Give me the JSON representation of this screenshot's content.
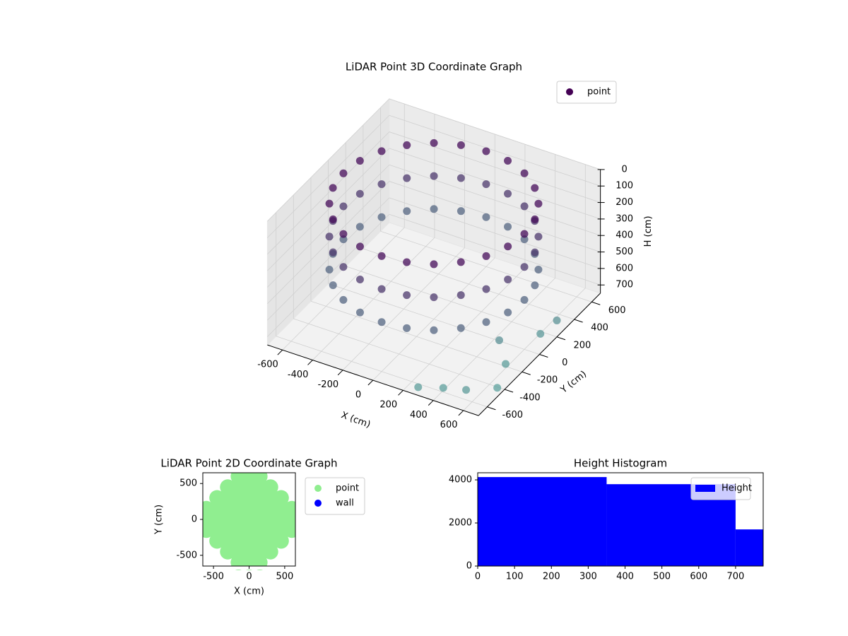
{
  "chart_data": [
    {
      "type": "scatter3d",
      "title": "LiDAR Point 3D Coordinate Graph",
      "xlabel": "X (cm)",
      "ylabel": "Y (cm)",
      "zlabel": "H (cm)",
      "xlim": [
        -700,
        700
      ],
      "ylim": [
        -700,
        700
      ],
      "zlim": [
        0,
        750
      ],
      "z_inverted": true,
      "xticks": [
        -600,
        -400,
        -200,
        0,
        200,
        400,
        600
      ],
      "yticks": [
        -600,
        -400,
        -200,
        0,
        200,
        400,
        600
      ],
      "zticks": [
        0,
        100,
        200,
        300,
        400,
        500,
        600,
        700
      ],
      "color_scale": [
        "#440154",
        "#5fa8a0"
      ],
      "legend": "upper right",
      "series": [
        {
          "name": "point",
          "color": "#440154",
          "x": [
            600,
            580,
            520,
            424,
            300,
            155,
            0,
            -155,
            -300,
            -424,
            -520,
            -580,
            -600,
            -580,
            -520,
            -424,
            -300,
            -155,
            0,
            155,
            300,
            424,
            520,
            580,
            600,
            580,
            520,
            424,
            300,
            155,
            0,
            -155,
            -300,
            -424,
            -520,
            -580,
            -600,
            -580,
            -520,
            -424,
            -300,
            -155,
            0,
            155,
            300,
            424,
            520,
            580,
            600,
            580,
            520,
            424,
            300,
            155,
            0,
            -155,
            -300,
            -424,
            -520,
            -580,
            -600,
            -580,
            -520,
            -424,
            -300,
            -155,
            0,
            155,
            300,
            424,
            520,
            580,
            620,
            680,
            560,
            420,
            300,
            660,
            700,
            520
          ],
          "y": [
            0,
            155,
            300,
            424,
            520,
            580,
            600,
            580,
            520,
            424,
            300,
            155,
            0,
            -155,
            -300,
            -424,
            -520,
            -580,
            -600,
            -580,
            -520,
            -424,
            -300,
            -155,
            0,
            155,
            300,
            424,
            520,
            580,
            600,
            580,
            520,
            424,
            300,
            155,
            0,
            -155,
            -300,
            -424,
            -520,
            -580,
            -600,
            -580,
            -520,
            -424,
            -300,
            -155,
            0,
            155,
            300,
            424,
            520,
            580,
            600,
            580,
            520,
            424,
            300,
            155,
            0,
            -155,
            -300,
            -424,
            -520,
            -580,
            -600,
            -580,
            -520,
            -424,
            -300,
            -155,
            -250,
            -450,
            -600,
            -620,
            -700,
            80,
            200,
            -150
          ],
          "z": [
            50,
            50,
            50,
            50,
            50,
            50,
            50,
            50,
            50,
            50,
            50,
            50,
            50,
            50,
            50,
            50,
            50,
            50,
            50,
            50,
            50,
            50,
            50,
            50,
            250,
            250,
            250,
            250,
            250,
            250,
            250,
            250,
            250,
            250,
            250,
            250,
            250,
            250,
            250,
            250,
            250,
            250,
            250,
            250,
            250,
            250,
            250,
            250,
            450,
            450,
            450,
            450,
            450,
            450,
            450,
            450,
            450,
            450,
            450,
            450,
            450,
            450,
            450,
            450,
            450,
            450,
            450,
            450,
            450,
            450,
            450,
            450,
            700,
            720,
            690,
            710,
            700,
            680,
            650,
            640
          ]
        }
      ]
    },
    {
      "type": "scatter",
      "title": "LiDAR Point 2D Coordinate Graph",
      "xlabel": "X (cm)",
      "ylabel": "Y (cm)",
      "xlim": [
        -650,
        650
      ],
      "ylim": [
        -650,
        650
      ],
      "xticks": [
        -500,
        0,
        500
      ],
      "yticks": [
        -500,
        0,
        500
      ],
      "legend": "outside right",
      "series": [
        {
          "name": "point",
          "color": "#90ee90",
          "x": [
            -150,
            0,
            150,
            -300,
            -150,
            0,
            150,
            300,
            -450,
            -300,
            -150,
            0,
            150,
            300,
            450,
            -600,
            -450,
            -300,
            -150,
            0,
            150,
            300,
            450,
            600,
            -600,
            -450,
            -300,
            -150,
            0,
            150,
            300,
            450,
            600,
            -600,
            -450,
            -300,
            -150,
            0,
            150,
            300,
            450,
            600,
            -450,
            -300,
            -150,
            0,
            150,
            300,
            450,
            -300,
            -150,
            0,
            150,
            300,
            -150,
            0,
            150
          ],
          "y": [
            -600,
            -600,
            -600,
            -450,
            -450,
            -450,
            -450,
            -450,
            -300,
            -300,
            -300,
            -300,
            -300,
            -300,
            -300,
            -150,
            -150,
            -150,
            -150,
            -150,
            -150,
            -150,
            -150,
            -150,
            0,
            0,
            0,
            0,
            0,
            0,
            0,
            0,
            0,
            150,
            150,
            150,
            150,
            150,
            150,
            150,
            150,
            150,
            300,
            300,
            300,
            300,
            300,
            300,
            300,
            450,
            450,
            450,
            450,
            450,
            600,
            600,
            600
          ]
        },
        {
          "name": "wall",
          "color": "#0000ff",
          "x": [],
          "y": []
        }
      ]
    },
    {
      "type": "histogram",
      "title": "Height Histogram",
      "bins": [
        0,
        350,
        700,
        780
      ],
      "xlim": [
        0,
        775
      ],
      "ylim": [
        0,
        4330
      ],
      "xticks": [
        0,
        100,
        200,
        300,
        400,
        500,
        600,
        700
      ],
      "yticks": [
        0,
        2000,
        4000
      ],
      "legend": "upper right",
      "series": [
        {
          "name": "Height",
          "color": "#0000ff",
          "values": [
            4130,
            3800,
            1700
          ]
        }
      ]
    }
  ]
}
